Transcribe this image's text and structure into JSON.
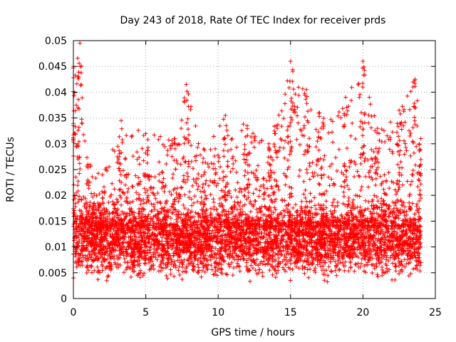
{
  "chart_data": {
    "type": "scatter",
    "title": "Day 243 of 2018, Rate Of TEC Index for receiver prds",
    "xlabel": "GPS time / hours",
    "ylabel": "ROTI / TECUs",
    "xlim": [
      0,
      25
    ],
    "ylim": [
      0,
      0.05
    ],
    "x_ticks": [
      0,
      5,
      10,
      15,
      20,
      25
    ],
    "x_tick_labels": [
      "0",
      "5",
      "10",
      "15",
      "20",
      "25"
    ],
    "y_ticks": [
      0,
      0.005,
      0.01,
      0.015,
      0.02,
      0.025,
      0.03,
      0.035,
      0.04,
      0.045,
      0.05
    ],
    "y_tick_labels": [
      "0",
      "0.005",
      "0.01",
      "0.015",
      "0.02",
      "0.025",
      "0.03",
      "0.035",
      "0.04",
      "0.045",
      "0.05"
    ],
    "grid": true,
    "marker": "+",
    "color": "#ff0000",
    "series": [
      {
        "name": "ROTI",
        "x_range": [
          0,
          24
        ],
        "typical_range": [
          0.003,
          0.02
        ],
        "baseline_min": 0.002,
        "upper_envelope": [
          {
            "x": 0.0,
            "y": 0.045
          },
          {
            "x": 0.3,
            "y": 0.043
          },
          {
            "x": 0.45,
            "y": 0.0495
          },
          {
            "x": 1.0,
            "y": 0.026
          },
          {
            "x": 2.0,
            "y": 0.024
          },
          {
            "x": 3.3,
            "y": 0.0345
          },
          {
            "x": 5.0,
            "y": 0.032
          },
          {
            "x": 7.0,
            "y": 0.031
          },
          {
            "x": 7.8,
            "y": 0.0415
          },
          {
            "x": 9.0,
            "y": 0.029
          },
          {
            "x": 10.5,
            "y": 0.0355
          },
          {
            "x": 12.0,
            "y": 0.0335
          },
          {
            "x": 13.5,
            "y": 0.03
          },
          {
            "x": 14.0,
            "y": 0.0335
          },
          {
            "x": 15.0,
            "y": 0.046
          },
          {
            "x": 16.1,
            "y": 0.0405
          },
          {
            "x": 17.0,
            "y": 0.036
          },
          {
            "x": 18.8,
            "y": 0.039
          },
          {
            "x": 20.0,
            "y": 0.046
          },
          {
            "x": 21.0,
            "y": 0.033
          },
          {
            "x": 22.5,
            "y": 0.0365
          },
          {
            "x": 23.6,
            "y": 0.0425
          },
          {
            "x": 24.0,
            "y": 0.031
          }
        ]
      }
    ]
  }
}
